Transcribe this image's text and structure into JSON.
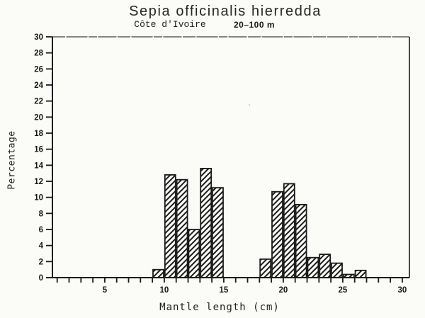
{
  "header": {
    "title": "Sepia officinalis hierredda",
    "subtitle_location": "Côte d'Ivoire",
    "subtitle_depth": "20–100 m"
  },
  "chart_data": {
    "type": "bar",
    "title": "Sepia officinalis hierredda",
    "subtitle": "Côte d'Ivoire  20–100 m",
    "xlabel": "Mantle length (cm)",
    "ylabel": "Percentage",
    "xlim": [
      0.6,
      30.6
    ],
    "ylim": [
      0,
      30
    ],
    "x_major_ticks": [
      5,
      10,
      15,
      20,
      25,
      30
    ],
    "x_minor_tick_start": 1,
    "x_minor_tick_end": 30,
    "x_minor_step": 1,
    "y_ticks": [
      0,
      2,
      4,
      6,
      8,
      10,
      12,
      14,
      16,
      18,
      20,
      22,
      24,
      26,
      28,
      30
    ],
    "bin_width": 1,
    "bars": [
      {
        "bin_start": 9,
        "value": 1.0
      },
      {
        "bin_start": 10,
        "value": 12.8
      },
      {
        "bin_start": 11,
        "value": 12.2
      },
      {
        "bin_start": 12,
        "value": 6.0
      },
      {
        "bin_start": 13,
        "value": 13.6
      },
      {
        "bin_start": 14,
        "value": 11.2
      },
      {
        "bin_start": 18,
        "value": 2.3
      },
      {
        "bin_start": 19,
        "value": 10.7
      },
      {
        "bin_start": 20,
        "value": 11.7
      },
      {
        "bin_start": 21,
        "value": 9.1
      },
      {
        "bin_start": 22,
        "value": 2.5
      },
      {
        "bin_start": 23,
        "value": 2.9
      },
      {
        "bin_start": 24,
        "value": 1.8
      },
      {
        "bin_start": 25,
        "value": 0.4
      },
      {
        "bin_start": 26,
        "value": 0.9
      }
    ],
    "hatch_style": "diagonal-forward",
    "grid": "off",
    "legend": "none"
  },
  "colors": {
    "ink": "#1a1a1a",
    "paper": "#fbfbf8",
    "frame_top": "#3c3c3c",
    "artifact": "#c9c9c4"
  }
}
